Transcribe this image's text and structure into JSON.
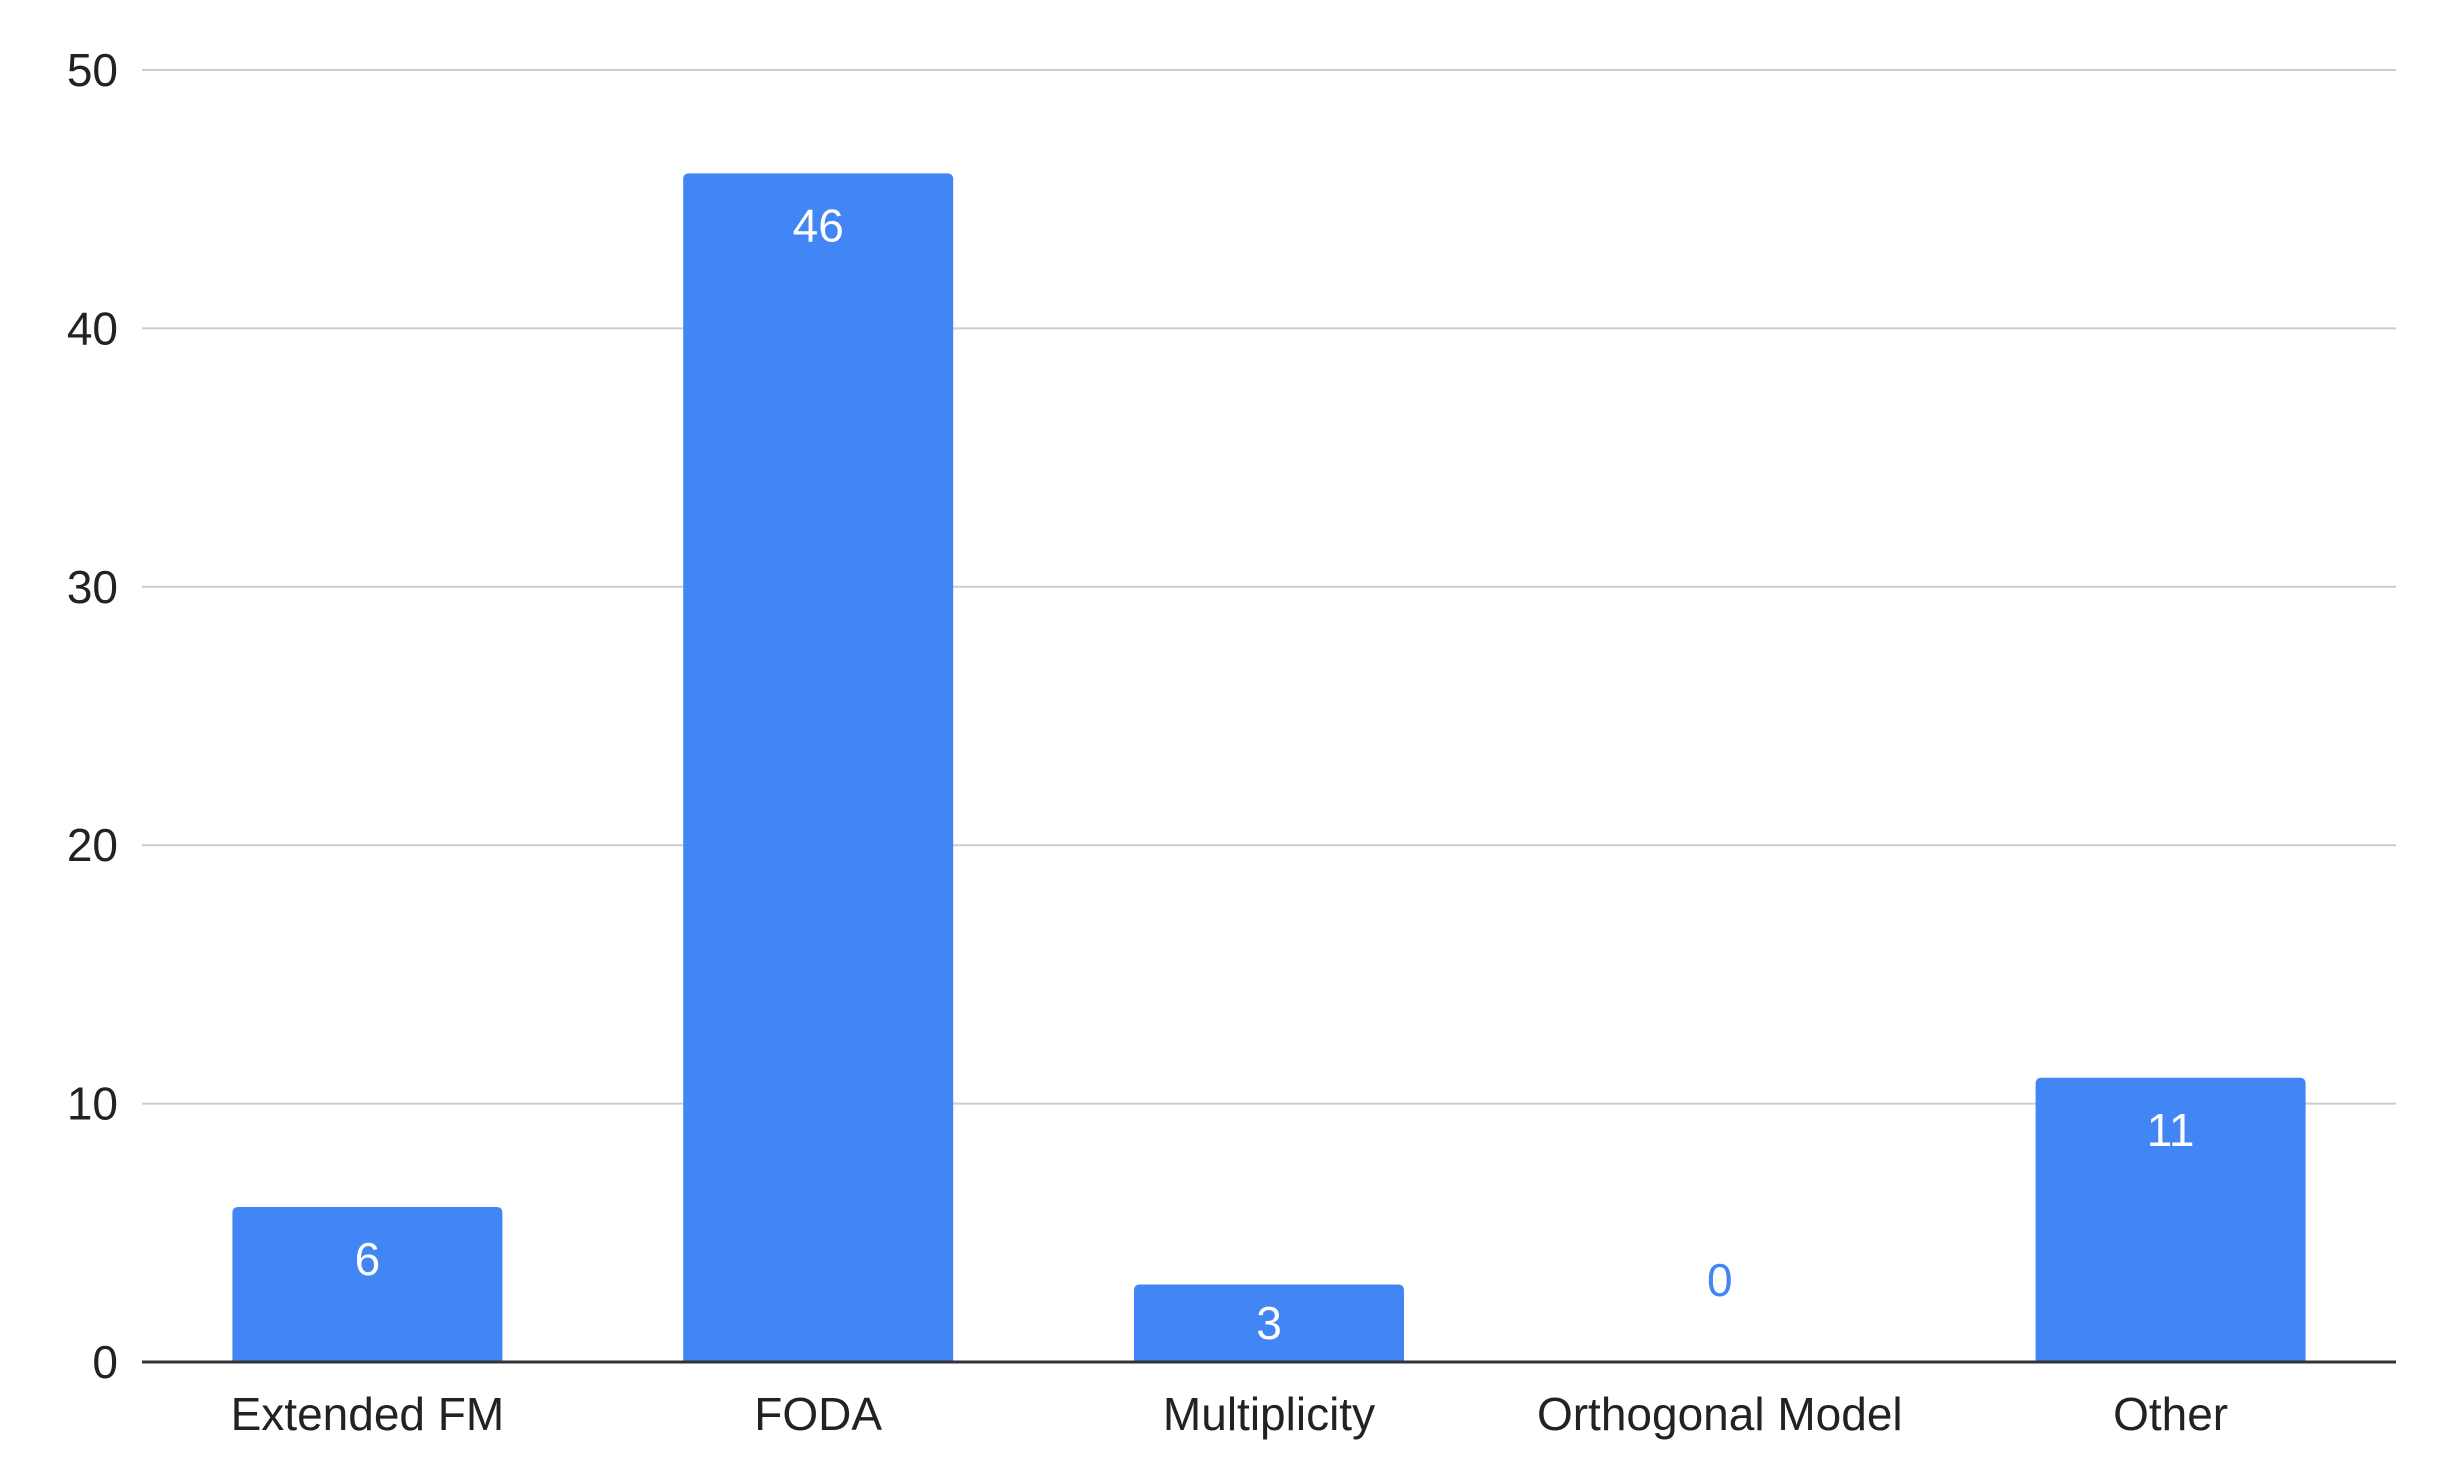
{
  "colors": {
    "bar": "#4285f4",
    "grid": "#cccccc",
    "axis": "#333333",
    "label_inside": "#ffffff",
    "label_outside": "#4285f4",
    "text": "#222222"
  },
  "chart_data": {
    "type": "bar",
    "title": "",
    "xlabel": "",
    "ylabel": "",
    "categories": [
      "Extended FM",
      "FODA",
      "Multiplicity",
      "Orthogonal Model",
      "Other"
    ],
    "values": [
      6,
      46,
      3,
      0,
      11
    ],
    "ylim": [
      0,
      50
    ],
    "yticks": [
      0,
      10,
      20,
      30,
      40,
      50
    ],
    "grid": true,
    "legend": "none",
    "data_labels": true
  }
}
